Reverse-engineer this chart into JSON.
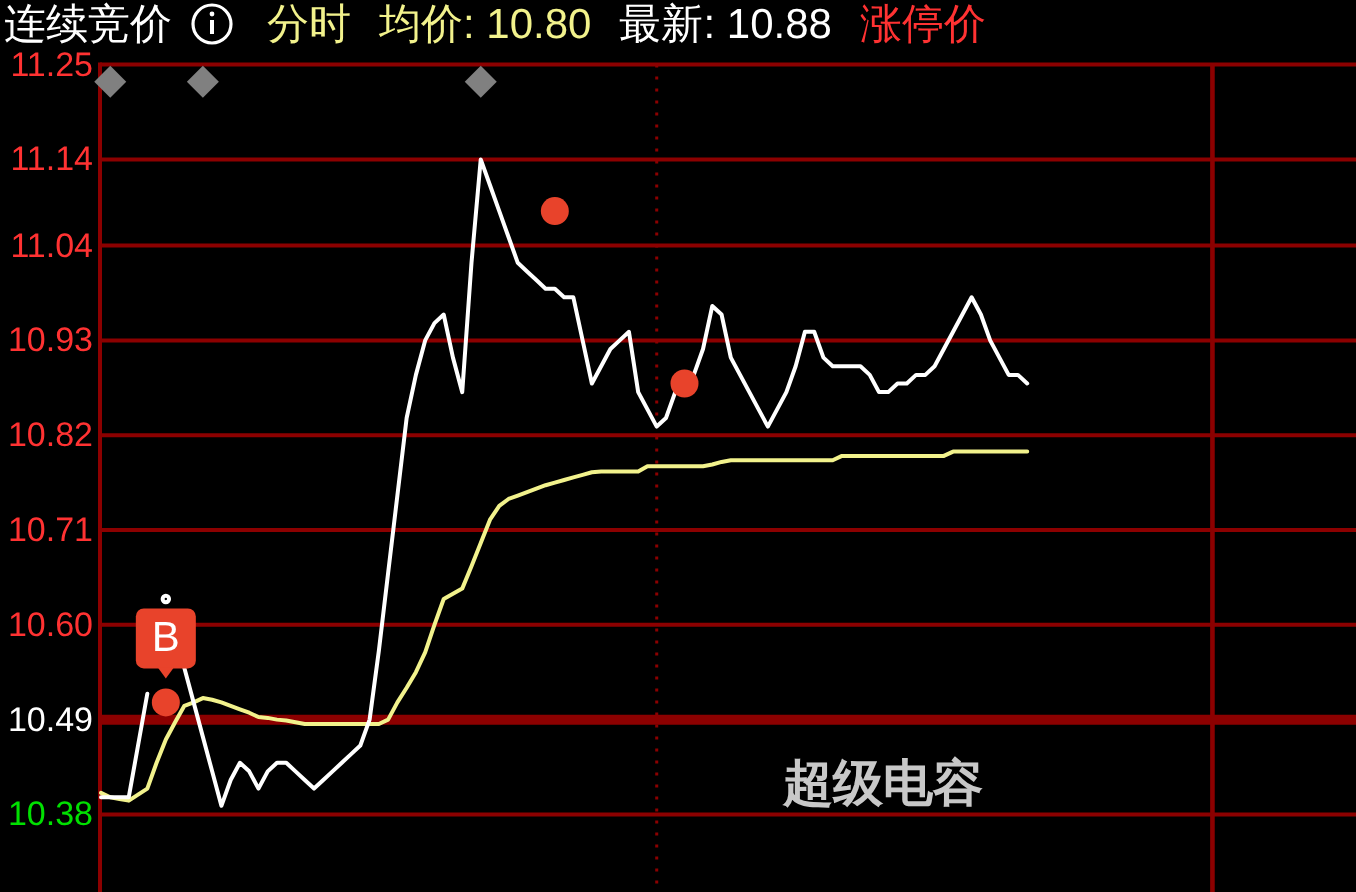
{
  "chart_data": {
    "type": "line",
    "title": "连续竞价",
    "subtitle": "分时",
    "grid": "y",
    "tick_labels": "y",
    "line_style": "solid",
    "categories": [
      null,
      null,
      null,
      null,
      null,
      null,
      null,
      null,
      null,
      null,
      null,
      null,
      null,
      null,
      null,
      null,
      null,
      null,
      null,
      null,
      null,
      null,
      null,
      null,
      null,
      null,
      null,
      null,
      null,
      null,
      null,
      null,
      null,
      null,
      null,
      null,
      null,
      null,
      null,
      null,
      null,
      null,
      null,
      null,
      null,
      null,
      null,
      null,
      null,
      null,
      null,
      null,
      null,
      null,
      null,
      null,
      null,
      null,
      null,
      null,
      null,
      null,
      null,
      null,
      null,
      null,
      null,
      null,
      null,
      null,
      null,
      null,
      null,
      null,
      null,
      null,
      null,
      null,
      null,
      null,
      null,
      null,
      null,
      null,
      null,
      null,
      null,
      null,
      null,
      null,
      null,
      null,
      null,
      null,
      null,
      null,
      null,
      null,
      null,
      null,
      null,
      null,
      null,
      null,
      null,
      null,
      null,
      null,
      null,
      null,
      null,
      null,
      null,
      null,
      null,
      null,
      null,
      null,
      null,
      null,
      null,
      null,
      null,
      null,
      null,
      null,
      null,
      null,
      null,
      null,
      null,
      null,
      null,
      null,
      null,
      null
    ],
    "ylim": [
      10.29,
      11.25
    ],
    "yticks": [
      10.38,
      10.49,
      {
        "value": 10.6,
        "label": "10.60"
      },
      10.71,
      10.82,
      10.93,
      11.04,
      11.14,
      11.25
    ],
    "ref_lines": [
      {
        "axis": "y",
        "value": 10.49,
        "color": "#8c0000"
      }
    ],
    "annotations": [
      "涨停价",
      "超级电容"
    ],
    "series": [
      {
        "name": "均价: 10.80",
        "color": "#f2f28c",
        "values": [
          10.405,
          10.4,
          10.398,
          10.396,
          10.403,
          10.41,
          10.44,
          10.467,
          10.487,
          10.506,
          10.51,
          10.515,
          10.513,
          10.51,
          10.506,
          10.502,
          10.498,
          10.493,
          10.492,
          10.49,
          10.489,
          10.487,
          10.485,
          10.485,
          10.485,
          10.485,
          10.485,
          10.485,
          10.485,
          10.485,
          10.485,
          10.49,
          10.51,
          10.527,
          10.545,
          10.568,
          10.6,
          10.63,
          10.636,
          10.642,
          10.668,
          10.695,
          10.722,
          10.738,
          10.746,
          10.75,
          10.754,
          10.758,
          10.762,
          10.765,
          10.768,
          10.771,
          10.774,
          10.777,
          10.778,
          10.778,
          10.778,
          10.778,
          10.778,
          10.784,
          10.784,
          10.784,
          10.784,
          10.784,
          10.784,
          10.784,
          10.786,
          10.789,
          10.791,
          10.791,
          10.791,
          10.791,
          10.791,
          10.791,
          10.791,
          10.791,
          10.791,
          10.791,
          10.791,
          10.791,
          10.796,
          10.796,
          10.796,
          10.796,
          10.796,
          10.796,
          10.796,
          10.796,
          10.796,
          10.796,
          10.796,
          10.796,
          10.801,
          10.801,
          10.801,
          10.801,
          10.801,
          10.801,
          10.801,
          10.801,
          10.801,
          null,
          null,
          null,
          null,
          null,
          null,
          null,
          null,
          null,
          null,
          null,
          null,
          null,
          null,
          null,
          null,
          null,
          null,
          null,
          null,
          null,
          null,
          null,
          null,
          null,
          null,
          null,
          null,
          null,
          null,
          null,
          null,
          null,
          null,
          null
        ]
      },
      {
        "name": "最新: 10.88",
        "color": "#ffffff",
        "values": [
          10.4,
          10.4,
          10.4,
          10.4,
          10.46,
          10.52,
          null,
          10.63,
          null,
          10.55,
          10.51,
          10.47,
          10.43,
          10.39,
          10.42,
          10.44,
          10.43,
          10.41,
          10.43,
          10.44,
          10.44,
          10.43,
          10.42,
          10.41,
          10.42,
          10.43,
          10.44,
          10.45,
          10.46,
          10.49,
          10.57,
          10.66,
          10.75,
          10.84,
          10.89,
          10.93,
          10.95,
          10.96,
          10.91,
          10.87,
          11.02,
          11.14,
          11.11,
          11.08,
          11.05,
          11.02,
          11.01,
          11.0,
          10.99,
          10.99,
          10.98,
          10.98,
          10.93,
          10.88,
          10.9,
          10.92,
          10.93,
          10.94,
          10.87,
          10.85,
          10.83,
          10.84,
          10.87,
          10.88,
          10.89,
          10.92,
          10.97,
          10.96,
          10.91,
          10.89,
          10.87,
          10.85,
          10.83,
          10.85,
          10.87,
          10.9,
          10.94,
          10.94,
          10.91,
          10.9,
          10.9,
          10.9,
          10.9,
          10.89,
          10.87,
          10.87,
          10.88,
          10.88,
          10.89,
          10.89,
          10.9,
          10.92,
          10.94,
          10.96,
          10.98,
          10.96,
          10.93,
          10.91,
          10.89,
          10.89,
          10.88,
          null,
          null,
          null,
          null,
          null,
          null,
          null,
          null,
          null,
          null,
          null,
          null,
          null,
          null,
          null,
          null,
          null,
          null,
          null,
          null,
          null,
          null,
          null,
          null,
          null,
          null,
          null,
          null,
          null,
          null,
          null,
          null,
          null,
          null,
          null
        ]
      },
      {
        "type": "scatter",
        "marker": "circle",
        "color": "#e8432b",
        "values": [
          null,
          null,
          null,
          null,
          null,
          null,
          null,
          10.51,
          null,
          null,
          null,
          null,
          null,
          null,
          null,
          null,
          null,
          null,
          null,
          null,
          null,
          null,
          null,
          null,
          null,
          null,
          null,
          null,
          null,
          null,
          null,
          null,
          null,
          null,
          null,
          null,
          null,
          null,
          null,
          null,
          null,
          null,
          null,
          null,
          null,
          null,
          null,
          null,
          null,
          11.08,
          null,
          null,
          null,
          null,
          null,
          null,
          null,
          null,
          null,
          null,
          null,
          null,
          null,
          10.88,
          null,
          null,
          null,
          null,
          null,
          null,
          null,
          null,
          null,
          null,
          null,
          null,
          null,
          null,
          null,
          null,
          null,
          null,
          null,
          null,
          null,
          null,
          null,
          null,
          null,
          null,
          null,
          null,
          null,
          null,
          null,
          null,
          null,
          null,
          null,
          null,
          null,
          null,
          null,
          null,
          null,
          null,
          null,
          null,
          null,
          null,
          null,
          null,
          null,
          null,
          null,
          null,
          null,
          null,
          null,
          null,
          null,
          null,
          null,
          null,
          null,
          null,
          null,
          null,
          null,
          null,
          null,
          null,
          null,
          null,
          null,
          null
        ],
        "value_labels": [
          null,
          null,
          null,
          null,
          null,
          null,
          null,
          "B",
          null,
          null,
          null,
          null,
          null,
          null,
          null,
          null,
          null,
          null,
          null,
          null,
          null,
          null,
          null,
          null,
          null,
          null,
          null,
          null,
          null,
          null,
          null,
          null,
          null,
          null,
          null,
          null,
          null,
          null,
          null,
          null,
          null,
          null,
          null,
          null,
          null,
          null,
          null,
          null,
          null,
          null,
          null,
          null,
          null,
          null,
          null,
          null,
          null,
          null,
          null,
          null,
          null,
          null,
          null,
          null,
          null,
          null,
          null,
          null,
          null,
          null,
          null,
          null,
          null,
          null,
          null,
          null,
          null,
          null,
          null,
          null,
          null,
          null,
          null,
          null,
          null,
          null,
          null,
          null,
          null,
          null,
          null,
          null,
          null,
          null,
          null,
          null,
          null,
          null,
          null,
          null,
          null,
          null,
          null,
          null,
          null,
          null,
          null,
          null,
          null,
          null,
          null,
          null,
          null,
          null,
          null,
          null,
          null,
          null,
          null,
          null,
          null,
          null,
          null,
          null,
          null,
          null,
          null,
          null,
          null,
          null,
          null,
          null,
          null,
          null,
          null,
          null
        ]
      },
      {
        "type": "scatter",
        "marker": "diamond",
        "color": "#808080",
        "values": [
          null,
          11.23,
          null,
          null,
          null,
          null,
          null,
          null,
          null,
          null,
          null,
          11.23,
          null,
          null,
          null,
          null,
          null,
          null,
          null,
          null,
          null,
          null,
          null,
          null,
          null,
          null,
          null,
          null,
          null,
          null,
          null,
          null,
          null,
          null,
          null,
          null,
          null,
          null,
          null,
          null,
          null,
          11.23,
          null,
          null,
          null,
          null,
          null,
          null,
          null,
          null,
          null,
          null,
          null,
          null,
          null,
          null,
          null,
          null,
          null,
          null,
          null,
          null,
          null,
          null,
          null,
          null,
          null,
          null,
          null,
          null,
          null,
          null,
          null,
          null,
          null,
          null,
          null,
          null,
          null,
          null,
          null,
          null,
          null,
          null,
          null,
          null,
          null,
          null,
          null,
          null,
          null,
          null,
          null,
          null,
          null,
          null,
          null,
          null,
          null,
          null,
          null,
          null,
          null,
          null,
          null,
          null,
          null,
          null,
          null,
          null,
          null,
          null,
          null,
          null,
          null,
          null,
          null,
          null,
          null,
          null,
          null,
          null,
          null,
          null,
          null,
          null,
          null,
          null,
          null,
          null,
          null,
          null,
          null,
          null,
          null,
          null
        ]
      }
    ]
  }
}
